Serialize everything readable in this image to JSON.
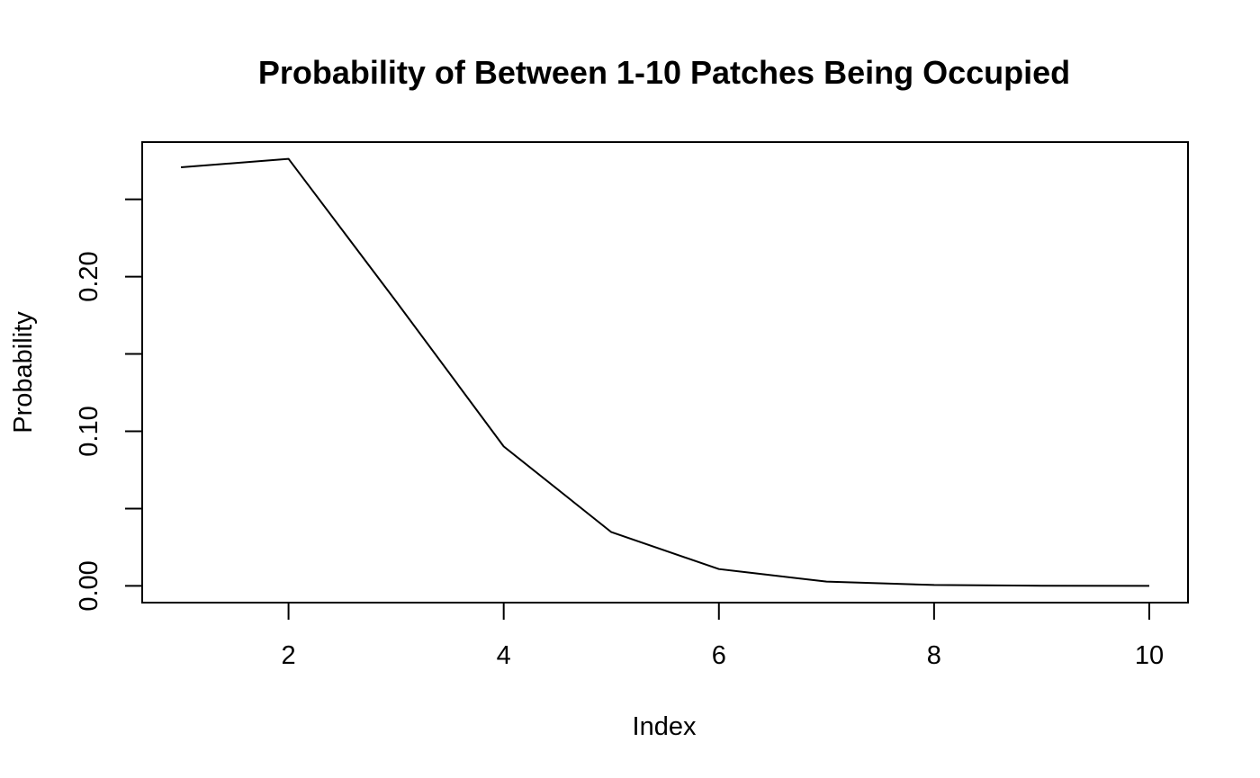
{
  "chart_data": {
    "type": "line",
    "title": "Probability of Between 1-10 Patches Being Occupied",
    "xlabel": "Index",
    "ylabel": "Probability",
    "x": [
      1,
      2,
      3,
      4,
      5,
      6,
      7,
      8,
      9,
      10
    ],
    "series": [
      {
        "values": [
          0.2707,
          0.2762,
          0.184,
          0.0902,
          0.0348,
          0.0109,
          0.0028,
          0.0006,
          0.0001,
          2e-05
        ]
      }
    ],
    "xlim": [
      0.64,
      10.36
    ],
    "ylim": [
      -0.0108,
      0.287
    ],
    "x_ticks": [
      2,
      4,
      6,
      8,
      10
    ],
    "x_tick_labels": [
      "2",
      "4",
      "6",
      "8",
      "10"
    ],
    "y_ticks": [
      0.0,
      0.05,
      0.1,
      0.15,
      0.2,
      0.25
    ],
    "y_tick_labels": [
      "0.00",
      "",
      "0.10",
      "",
      "0.20",
      ""
    ],
    "grid": false,
    "legend": "none",
    "line_color": "#000000"
  }
}
